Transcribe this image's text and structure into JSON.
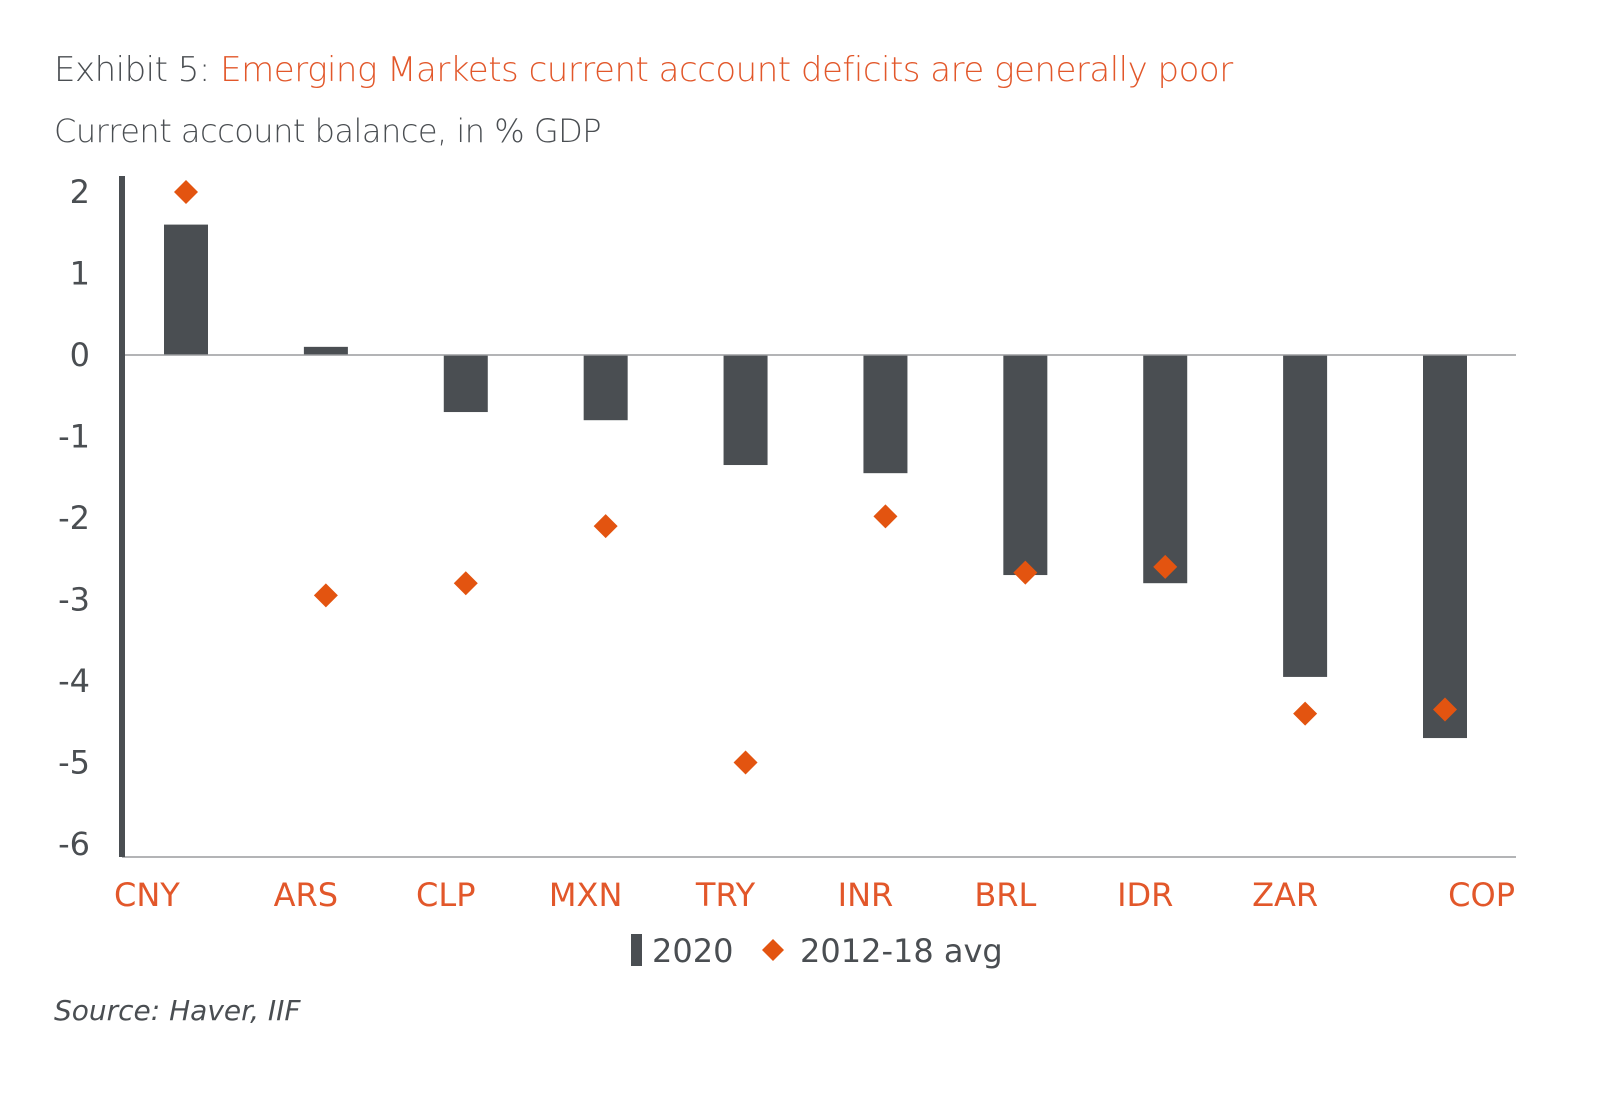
{
  "header": {
    "title_prefix": "Exhibit 5:",
    "title_highlight": "Emerging Markets current account deficits are generally poor",
    "subtitle": "Current account balance, in % GDP"
  },
  "source": "Source: Haver, IIF",
  "colors": {
    "bar": "#4a4e52",
    "marker": "#e35410",
    "accent_text": "#e2572a",
    "axis": "#4a4e52"
  },
  "chart_data": {
    "type": "bar",
    "title": "Emerging Markets current account deficits are generally poor",
    "subtitle": "Current account balance, in % GDP",
    "categories": [
      "CNY",
      "ARS",
      "CLP",
      "MXN",
      "TRY",
      "INR",
      "BRL",
      "IDR",
      "ZAR",
      "COP"
    ],
    "series": [
      {
        "name": "2020",
        "kind": "bar",
        "values": [
          1.6,
          0.1,
          -0.7,
          -0.8,
          -1.35,
          -1.45,
          -2.7,
          -2.8,
          -3.95,
          -4.7
        ]
      },
      {
        "name": "2012-18 avg",
        "kind": "marker",
        "values": [
          2.0,
          -2.95,
          -2.8,
          -2.1,
          -5.0,
          -1.98,
          -2.67,
          -2.6,
          -4.4,
          -4.35
        ]
      }
    ],
    "ylim": [
      -6,
      2
    ],
    "yticks": [
      2,
      1,
      0,
      -1,
      -2,
      -3,
      -4,
      -5,
      -6
    ],
    "xlabel": "",
    "ylabel": "",
    "legend_position": "bottom-center",
    "grid": false
  }
}
